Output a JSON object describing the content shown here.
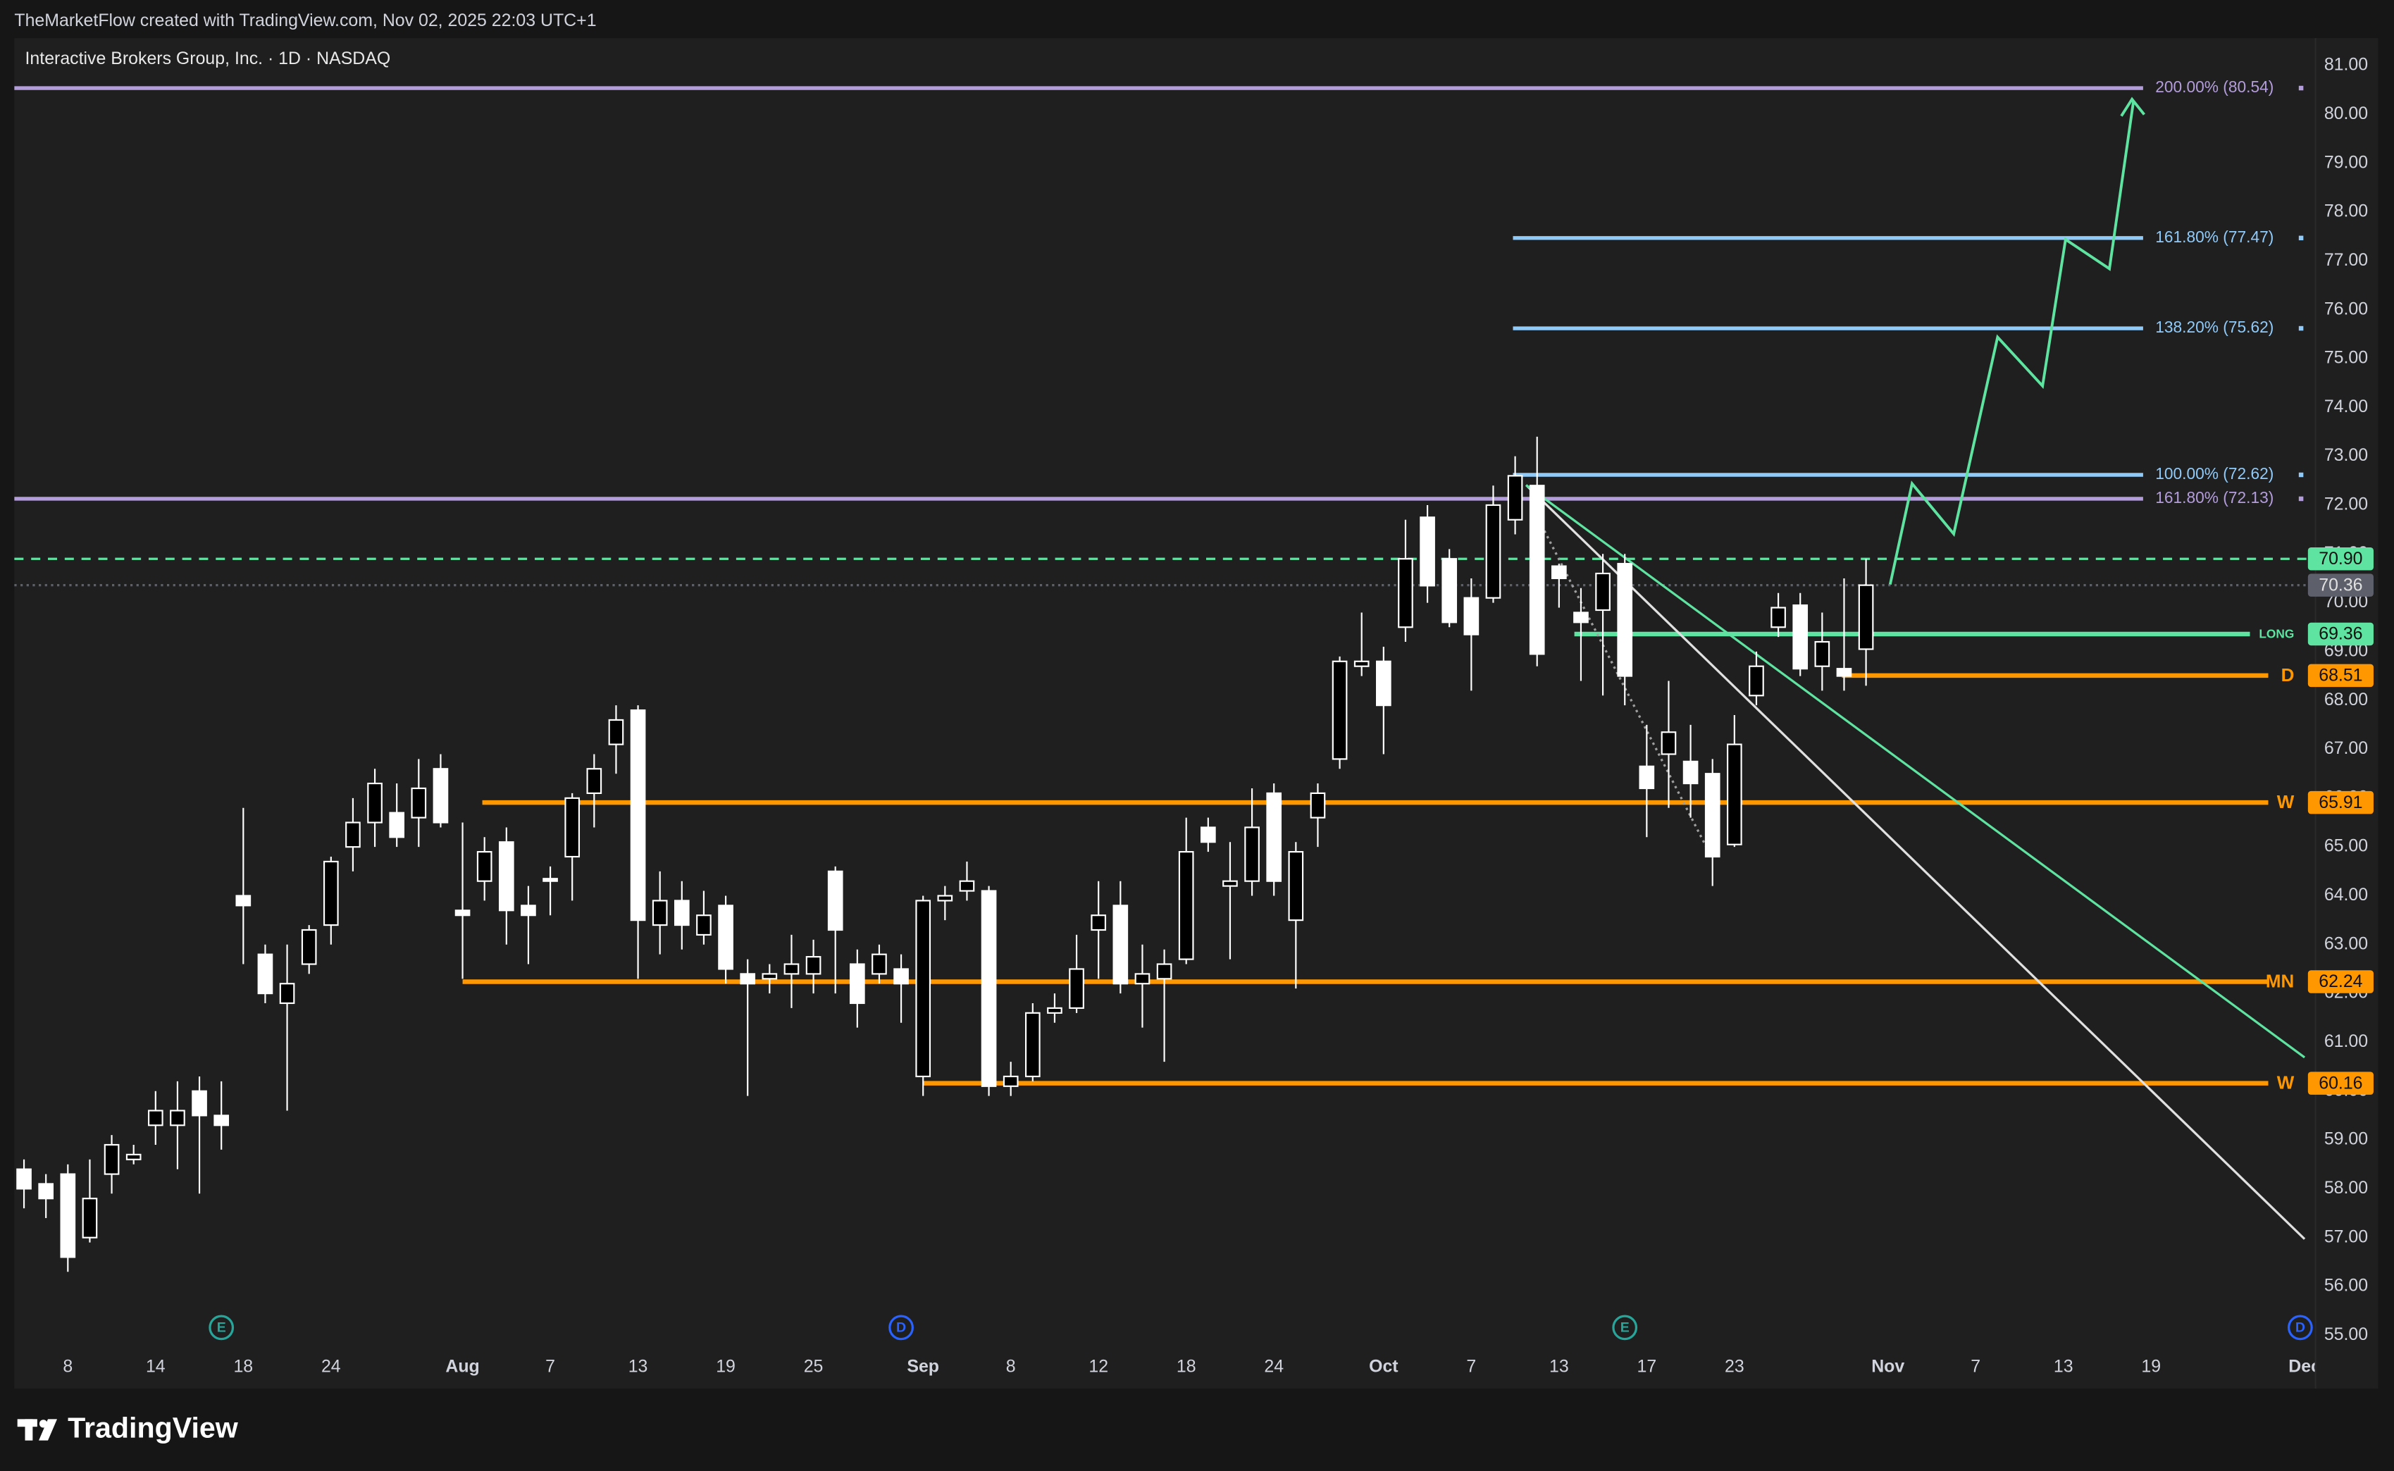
{
  "header": "TheMarketFlow created with TradingView.com, Nov 02, 2025 22:03 UTC+1",
  "logo": "TradingView",
  "chart_data": {
    "type": "candlestick",
    "title": "Interactive Brokers Group, Inc. · 1D · NASDAQ",
    "up_color": "#000000",
    "down_color": "#ffffff",
    "wick_color": "#ffffff",
    "x": [
      -2,
      -1,
      0,
      1,
      2,
      3,
      4,
      5,
      6,
      7,
      8,
      9,
      10,
      11,
      12,
      13,
      14,
      15,
      16,
      17,
      18,
      19,
      20,
      21,
      22,
      23,
      24,
      25,
      26,
      27,
      28,
      29,
      30,
      31,
      32,
      33,
      34,
      35,
      36,
      37,
      38,
      39,
      40,
      41,
      42,
      43,
      44,
      45,
      46,
      47,
      48,
      49,
      50,
      51,
      52,
      53,
      54,
      55,
      56,
      57,
      58,
      59,
      60,
      61,
      62,
      63,
      64,
      65,
      66,
      67,
      68,
      69,
      70,
      71,
      72,
      73,
      74,
      75,
      76,
      77,
      78,
      79,
      80,
      81,
      82
    ],
    "open": [
      58.4,
      58.1,
      58.3,
      57.0,
      58.3,
      58.6,
      59.3,
      59.3,
      60.0,
      59.5,
      64.0,
      62.8,
      61.8,
      62.6,
      63.4,
      65.0,
      65.5,
      65.7,
      65.6,
      66.6,
      63.7,
      64.3,
      65.1,
      63.8,
      64.35,
      64.8,
      66.1,
      67.1,
      67.8,
      63.4,
      63.9,
      63.2,
      63.8,
      62.4,
      62.3,
      62.4,
      62.4,
      64.5,
      62.6,
      62.4,
      62.5,
      60.3,
      63.9,
      64.1,
      64.1,
      60.1,
      60.3,
      61.6,
      61.7,
      63.3,
      63.8,
      62.2,
      62.3,
      62.7,
      65.4,
      64.2,
      64.3,
      66.1,
      63.5,
      65.6,
      66.8,
      68.7,
      68.8,
      69.5,
      71.75,
      70.9,
      70.1,
      70.1,
      71.7,
      72.4,
      70.75,
      69.8,
      69.85,
      70.8,
      66.65,
      66.9,
      66.75,
      66.5,
      65.05,
      68.1,
      69.5,
      69.95,
      68.7,
      68.65,
      69.05
    ],
    "high": [
      58.6,
      58.3,
      58.5,
      58.6,
      59.1,
      58.9,
      60.0,
      60.2,
      60.3,
      60.2,
      65.8,
      63.0,
      63.0,
      63.4,
      64.8,
      66.0,
      66.6,
      66.3,
      66.8,
      66.9,
      65.5,
      65.2,
      65.4,
      64.2,
      64.6,
      66.1,
      66.9,
      67.9,
      67.9,
      64.5,
      64.3,
      64.1,
      64.0,
      62.7,
      62.6,
      63.2,
      63.1,
      64.6,
      62.9,
      63.0,
      62.8,
      64.0,
      64.2,
      64.7,
      64.2,
      60.6,
      61.8,
      62.0,
      63.2,
      64.3,
      64.3,
      63.0,
      62.9,
      65.6,
      65.6,
      65.1,
      66.2,
      66.3,
      65.1,
      66.3,
      68.9,
      69.8,
      69.1,
      71.7,
      72.0,
      71.1,
      70.5,
      72.4,
      73.0,
      73.4,
      70.8,
      70.3,
      71.0,
      71.0,
      67.5,
      68.4,
      67.5,
      66.8,
      67.7,
      69.0,
      70.2,
      70.2,
      69.8,
      70.5,
      70.9
    ],
    "low": [
      57.6,
      57.4,
      56.3,
      56.9,
      57.9,
      58.5,
      58.9,
      58.4,
      57.9,
      58.8,
      62.6,
      61.8,
      59.6,
      62.4,
      63.0,
      64.5,
      65.0,
      65.0,
      65.0,
      65.4,
      62.3,
      63.9,
      63.0,
      62.6,
      63.6,
      63.9,
      65.4,
      66.5,
      62.3,
      62.8,
      62.9,
      63.0,
      62.2,
      59.9,
      62.0,
      61.7,
      62.0,
      62.0,
      61.3,
      62.2,
      61.4,
      59.9,
      63.5,
      63.9,
      59.9,
      59.9,
      60.2,
      61.4,
      61.6,
      62.3,
      62.0,
      61.3,
      60.6,
      62.6,
      64.9,
      62.7,
      64.0,
      64.0,
      62.1,
      65.0,
      66.6,
      68.5,
      66.9,
      69.2,
      70.0,
      69.5,
      68.2,
      70.0,
      71.4,
      68.7,
      69.9,
      68.4,
      68.1,
      67.9,
      65.2,
      65.8,
      65.6,
      64.2,
      65.0,
      67.9,
      69.3,
      68.5,
      68.2,
      68.2,
      68.3
    ],
    "close": [
      58.0,
      57.8,
      56.6,
      57.8,
      58.9,
      58.7,
      59.6,
      59.6,
      59.5,
      59.3,
      63.8,
      62.0,
      62.2,
      63.3,
      64.7,
      65.5,
      66.3,
      65.2,
      66.2,
      65.5,
      63.6,
      64.9,
      63.7,
      63.6,
      64.3,
      66.0,
      66.6,
      67.6,
      63.5,
      63.9,
      63.4,
      63.6,
      62.5,
      62.2,
      62.4,
      62.6,
      62.75,
      63.3,
      61.8,
      62.8,
      62.2,
      63.9,
      64.0,
      64.3,
      60.1,
      60.3,
      61.6,
      61.7,
      62.5,
      63.6,
      62.2,
      62.4,
      62.6,
      64.9,
      65.1,
      64.3,
      65.4,
      64.3,
      64.9,
      66.1,
      68.8,
      68.8,
      67.9,
      70.9,
      70.35,
      69.6,
      69.35,
      72.0,
      72.6,
      68.95,
      70.5,
      69.6,
      70.6,
      68.5,
      66.2,
      67.35,
      66.3,
      64.8,
      67.1,
      68.7,
      69.9,
      68.65,
      69.2,
      68.5,
      70.36
    ],
    "xlim": [
      -2.44,
      102.5
    ],
    "ylim": [
      53.97,
      81.5625
    ],
    "grid": false,
    "yticks": [
      {
        "value": 81,
        "label": "81.00"
      },
      {
        "value": 80,
        "label": "80.00"
      },
      {
        "value": 79,
        "label": "79.00"
      },
      {
        "value": 78,
        "label": "78.00"
      },
      {
        "value": 77,
        "label": "77.00"
      },
      {
        "value": 76,
        "label": "76.00"
      },
      {
        "value": 75,
        "label": "75.00"
      },
      {
        "value": 74,
        "label": "74.00"
      },
      {
        "value": 73,
        "label": "73.00"
      },
      {
        "value": 72,
        "label": "72.00"
      },
      {
        "value": 71,
        "label": "71.00"
      },
      {
        "value": 70,
        "label": "70.00"
      },
      {
        "value": 69,
        "label": "69.00"
      },
      {
        "value": 68,
        "label": "68.00"
      },
      {
        "value": 67,
        "label": "67.00"
      },
      {
        "value": 66,
        "label": "66.00"
      },
      {
        "value": 65,
        "label": "65.00"
      },
      {
        "value": 64,
        "label": "64.00"
      },
      {
        "value": 63,
        "label": "63.00"
      },
      {
        "value": 62,
        "label": "62.00"
      },
      {
        "value": 61,
        "label": "61.00"
      },
      {
        "value": 60,
        "label": "60.00"
      },
      {
        "value": 59,
        "label": "59.00"
      },
      {
        "value": 58,
        "label": "58.00"
      },
      {
        "value": 57,
        "label": "57.00"
      },
      {
        "value": 56,
        "label": "56.00"
      },
      {
        "value": 55,
        "label": "55.00"
      }
    ],
    "xticks": [
      {
        "value": 0,
        "label": "8"
      },
      {
        "value": 4,
        "label": "14"
      },
      {
        "value": 8,
        "label": "18"
      },
      {
        "value": 12,
        "label": "24"
      },
      {
        "value": 18,
        "label": "Aug"
      },
      {
        "value": 22,
        "label": "7"
      },
      {
        "value": 26,
        "label": "13"
      },
      {
        "value": 30,
        "label": "19"
      },
      {
        "value": 34,
        "label": "25"
      },
      {
        "value": 39,
        "label": "Sep"
      },
      {
        "value": 43,
        "label": "8"
      },
      {
        "value": 47,
        "label": "12"
      },
      {
        "value": 51,
        "label": "18"
      },
      {
        "value": 55,
        "label": "24"
      },
      {
        "value": 60,
        "label": "Oct"
      },
      {
        "value": 64,
        "label": "7"
      },
      {
        "value": 68,
        "label": "13"
      },
      {
        "value": 72,
        "label": "17"
      },
      {
        "value": 76,
        "label": "23"
      },
      {
        "value": 83,
        "label": "Nov"
      },
      {
        "value": 87,
        "label": "7"
      },
      {
        "value": 91,
        "label": "13"
      },
      {
        "value": 95,
        "label": "19"
      },
      {
        "value": 102,
        "label": "Dec"
      }
    ],
    "levels": [
      {
        "label": "200.00% (80.54)",
        "value": 80.54,
        "color": "#b39ddb",
        "x_start": -2.44
      },
      {
        "label": "161.80% (77.47)",
        "value": 77.47,
        "color": "#90caf9",
        "x_start": 65.9
      },
      {
        "label": "138.20% (75.62)",
        "value": 75.62,
        "color": "#90caf9",
        "x_start": 65.9
      },
      {
        "label": "100.00% (72.62)",
        "value": 72.62,
        "color": "#90caf9",
        "x_start": 65.9
      },
      {
        "label": "161.80% (72.13)",
        "value": 72.13,
        "color": "#b39ddb",
        "x_start": -2.44
      }
    ],
    "price_lines": [
      {
        "value": 70.9,
        "value_label": "70.90",
        "color": "#5ee3a0",
        "style": "dashed",
        "x_start": -2.44
      },
      {
        "value": 70.36,
        "value_label": "70.36",
        "color": "#5d606b",
        "style": "dotted",
        "x_start": -2.44
      },
      {
        "value": 69.36,
        "value_label": "69.36",
        "color": "#5ee3a0",
        "style": "solid",
        "x_start": 68.7,
        "tag": "LONG"
      },
      {
        "value": 68.51,
        "value_label": "68.51",
        "color": "#ff9800",
        "style": "solid",
        "x_start": 80.9,
        "tag": "D"
      },
      {
        "value": 65.91,
        "value_label": "65.91",
        "color": "#ff9800",
        "style": "solid",
        "x_start": 18.9,
        "tag": "W"
      },
      {
        "value": 62.24,
        "value_label": "62.24",
        "color": "#ff9800",
        "style": "solid",
        "x_start": 18.0,
        "tag": "MN"
      },
      {
        "value": 60.16,
        "value_label": "60.16",
        "color": "#ff9800",
        "style": "solid",
        "x_start": 39.0,
        "tag": "W"
      }
    ],
    "trendlines": [
      {
        "x": [
          66.5,
          102.0
        ],
        "y": [
          72.41,
          56.97
        ],
        "color": "#e0e0e0",
        "style": "solid"
      },
      {
        "x": [
          66.5,
          102.0
        ],
        "y": [
          72.41,
          60.69
        ],
        "color": "#5ee3a0",
        "style": "solid"
      },
      {
        "x": [
          66.7,
          74.9
        ],
        "y": [
          72.03,
          64.84
        ],
        "color": "#9e9e9e",
        "style": "dotted"
      }
    ],
    "projection": {
      "x": [
        83.1,
        84.1,
        86.0,
        88.0,
        90.05,
        91.1,
        93.1,
        94.2
      ],
      "y": [
        70.375,
        72.44,
        71.41,
        75.44,
        74.44,
        77.44,
        76.84,
        80.28
      ],
      "color": "#5ee3a0"
    },
    "events": [
      {
        "label": "E",
        "x": 7,
        "color": "#26a69a"
      },
      {
        "label": "D",
        "x": 38,
        "color": "#2962ff"
      },
      {
        "label": "E",
        "x": 71,
        "color": "#26a69a"
      },
      {
        "label": "D",
        "x": 101.8,
        "color": "#2962ff"
      }
    ]
  }
}
